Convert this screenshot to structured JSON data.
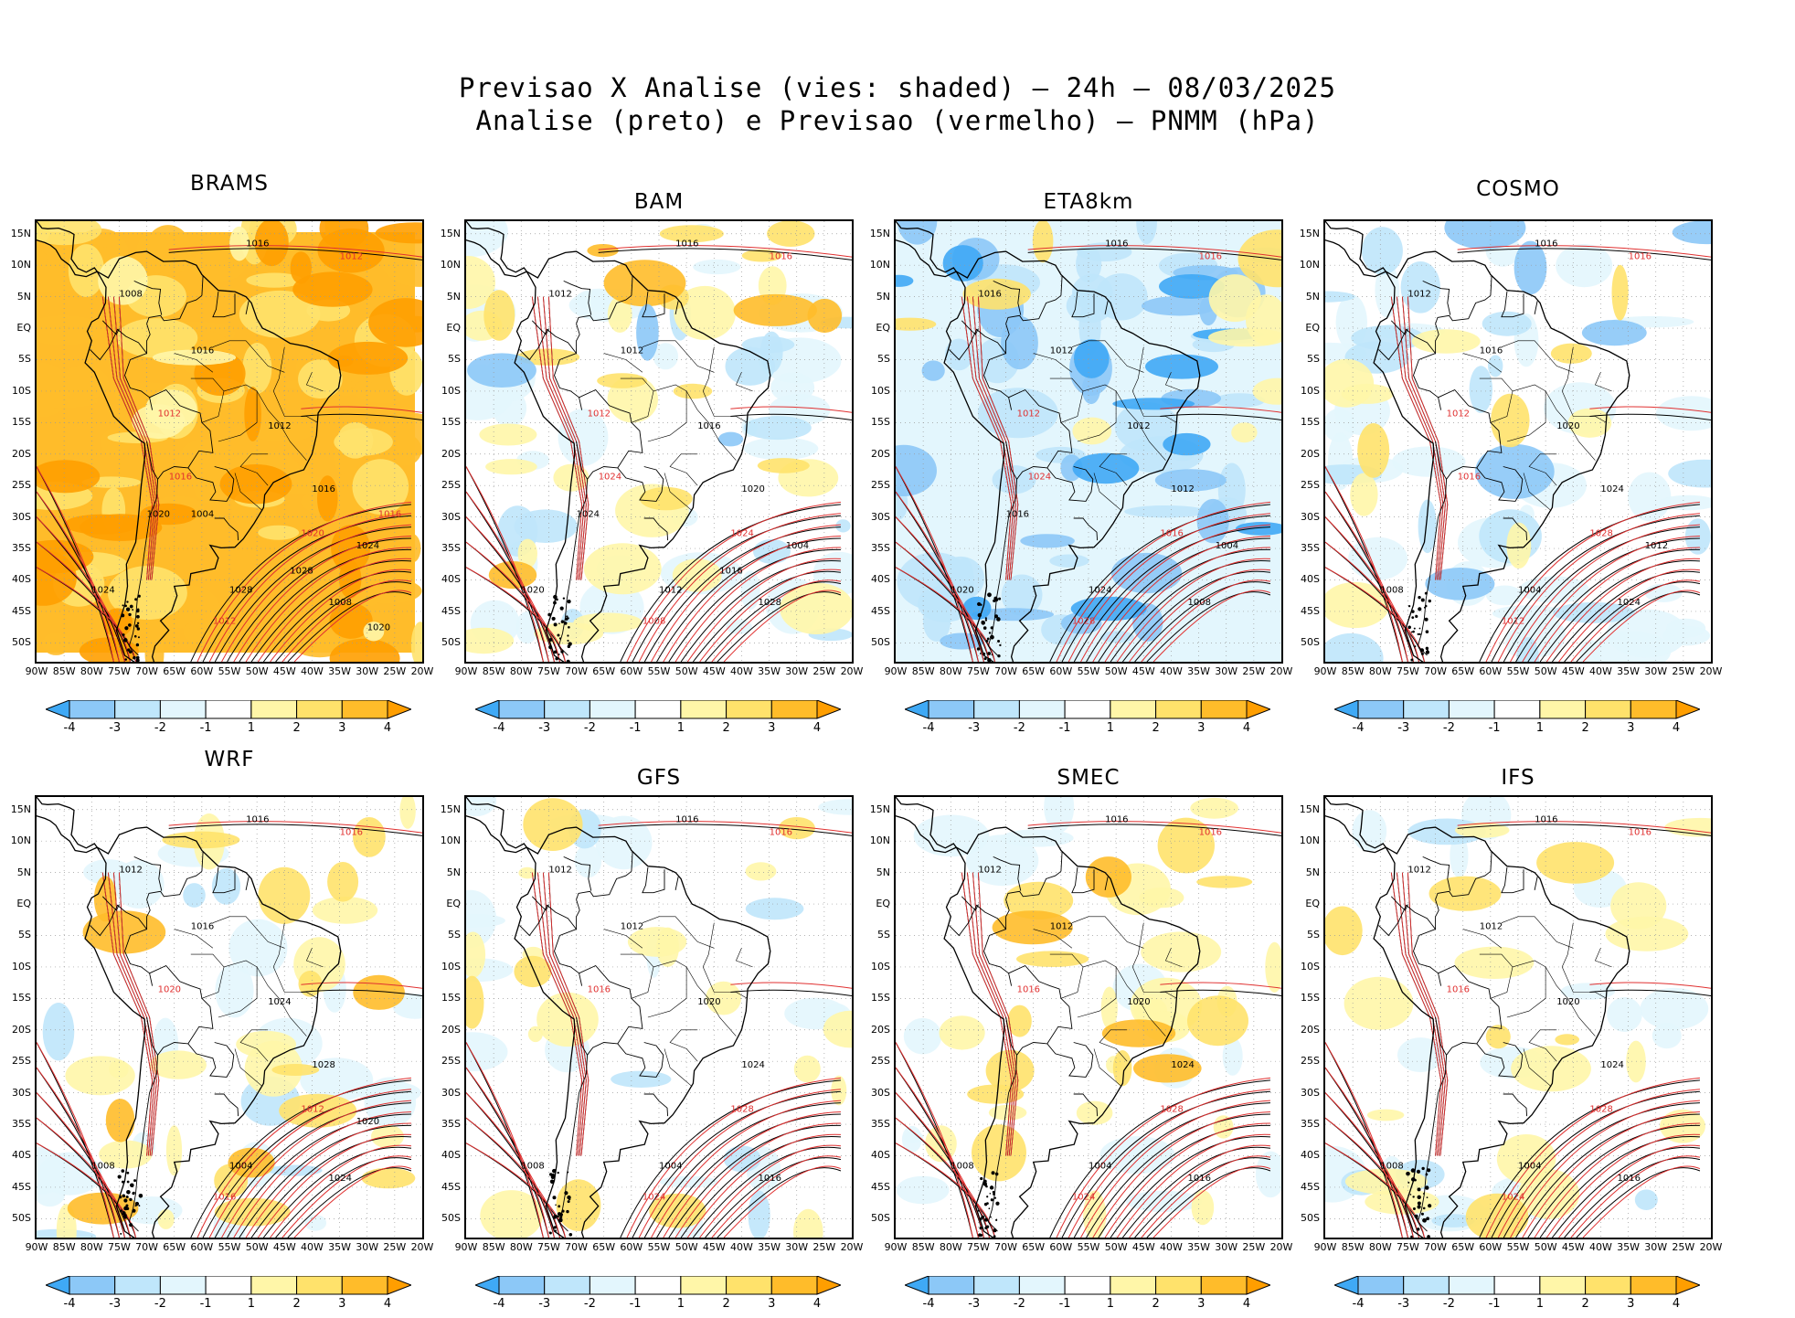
{
  "title": {
    "line1": "Previsao X Analise (vies: shaded) – 24h – 08/03/2025",
    "line2": "Analise (preto) e Previsao (vermelho) – PNMM (hPa)"
  },
  "axes": {
    "lat_labels": [
      "15N",
      "10N",
      "5N",
      "EQ",
      "5S",
      "10S",
      "15S",
      "20S",
      "25S",
      "30S",
      "35S",
      "40S",
      "45S",
      "50S"
    ],
    "lon_labels": [
      "90W",
      "85W",
      "80W",
      "75W",
      "70W",
      "65W",
      "60W",
      "55W",
      "50W",
      "45W",
      "40W",
      "35W",
      "30W",
      "25W",
      "20W"
    ]
  },
  "colorbar": {
    "labels": [
      "-4",
      "-3",
      "-2",
      "-1",
      "1",
      "2",
      "3",
      "4"
    ],
    "colors": [
      "#3fa9f5",
      "#8cc8f7",
      "#bfe6fb",
      "#e3f6fd",
      "#ffffff",
      "#fff6a8",
      "#ffe26b",
      "#ffbc2a",
      "#ff9e00"
    ]
  },
  "colors": {
    "analysis_contour": "#000000",
    "forecast_contour": "#e03030",
    "land": "#000000"
  },
  "panels": [
    {
      "id": "brams",
      "title": "BRAMS",
      "style": "warm"
    },
    {
      "id": "bam",
      "title": "BAM",
      "style": "mixed"
    },
    {
      "id": "eta8km",
      "title": "ETA8km",
      "style": "cool"
    },
    {
      "id": "cosmo",
      "title": "COSMO",
      "style": "mixed-cool"
    },
    {
      "id": "wrf",
      "title": "WRF",
      "style": "light-mixed"
    },
    {
      "id": "gfs",
      "title": "GFS",
      "style": "light"
    },
    {
      "id": "smec",
      "title": "SMEC",
      "style": "light-warm"
    },
    {
      "id": "ifs",
      "title": "IFS",
      "style": "light"
    }
  ],
  "contour_labels": {
    "brams": [
      "1016",
      "1012",
      "1008",
      "1016",
      "1012",
      "1012",
      "1016",
      "1020",
      "1024",
      "1028",
      "1012",
      "1008",
      "1024",
      "1016",
      "1020",
      "1028",
      "1016",
      "1020",
      "1004"
    ],
    "bam": [
      "1016",
      "1016",
      "1012",
      "1012",
      "1012",
      "1016",
      "1020",
      "1024",
      "1020",
      "1012",
      "1008",
      "1028",
      "1004",
      "1024",
      "1024",
      "1016"
    ],
    "eta8km": [
      "1016",
      "1016",
      "1016",
      "1012",
      "1012",
      "1012",
      "1012",
      "1016",
      "1020",
      "1024",
      "1028",
      "1008",
      "1004",
      "1024",
      "1016"
    ],
    "cosmo": [
      "1016",
      "1016",
      "1012",
      "1016",
      "1012",
      "1020",
      "1024",
      "1028",
      "1008",
      "1004",
      "1012",
      "1024",
      "1012",
      "1016"
    ],
    "wrf": [
      "1016",
      "1016",
      "1012",
      "1016",
      "1020",
      "1024",
      "1028",
      "1012",
      "1008",
      "1004",
      "1016",
      "1024",
      "1020"
    ],
    "gfs": [
      "1016",
      "1016",
      "1012",
      "1012",
      "1016",
      "1020",
      "1024",
      "1028",
      "1008",
      "1004",
      "1024",
      "1016"
    ],
    "smec": [
      "1016",
      "1016",
      "1012",
      "1012",
      "1016",
      "1020",
      "1024",
      "1028",
      "1008",
      "1004",
      "1024",
      "1016"
    ],
    "ifs": [
      "1016",
      "1016",
      "1012",
      "1012",
      "1016",
      "1020",
      "1024",
      "1028",
      "1008",
      "1004",
      "1024",
      "1016"
    ]
  }
}
